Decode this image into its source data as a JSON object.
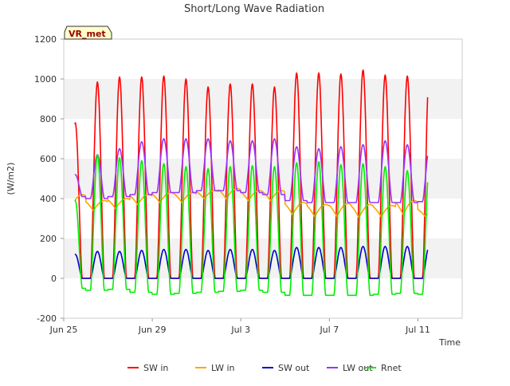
{
  "chart_data": {
    "type": "line",
    "title": "Short/Long Wave Radiation",
    "xlabel": "Time",
    "ylabel": "(W/m2)",
    "station_badge": "VR_met",
    "ylim": [
      -200,
      1200
    ],
    "y_ticks": [
      -200,
      0,
      200,
      400,
      600,
      800,
      1000,
      1200
    ],
    "xlim": [
      "2023-06-25",
      "2023-07-13"
    ],
    "x_ticks": [
      {
        "date": "2023-06-25",
        "label": "Jun 25"
      },
      {
        "date": "2023-06-29",
        "label": "Jun 29"
      },
      {
        "date": "2023-07-03",
        "label": "Jul 3"
      },
      {
        "date": "2023-07-07",
        "label": "Jul 7"
      },
      {
        "date": "2023-07-11",
        "label": "Jul 11"
      }
    ],
    "grid": "horizontal bands",
    "legend_position": "bottom",
    "series": [
      {
        "name": "SW in",
        "color": "#ff0000",
        "description": "daily shortwave incoming peaks",
        "daily_peak": [
          780,
          985,
          1010,
          1010,
          1015,
          1000,
          960,
          975,
          975,
          960,
          1030,
          1030,
          1025,
          1045,
          1020,
          1015,
          1050
        ],
        "night": 0
      },
      {
        "name": "LW in",
        "color": "#ffa500",
        "daily_peak": [
          420,
          390,
          400,
          420,
          430,
          430,
          440,
          450,
          440,
          440,
          380,
          370,
          375,
          370,
          365,
          390,
          350
        ],
        "night": [
          360,
          340,
          350,
          370,
          380,
          380,
          400,
          400,
          390,
          390,
          320,
          310,
          310,
          305,
          310,
          320,
          310
        ]
      },
      {
        "name": "SW out",
        "color": "#0000cc",
        "daily_peak": [
          120,
          135,
          135,
          140,
          145,
          145,
          140,
          145,
          145,
          140,
          155,
          155,
          155,
          160,
          160,
          160,
          165
        ],
        "night": 0
      },
      {
        "name": "LW out",
        "color": "#9933ff",
        "daily_peak": [
          520,
          620,
          650,
          685,
          700,
          700,
          700,
          690,
          690,
          700,
          660,
          650,
          660,
          670,
          690,
          670,
          650
        ],
        "night": [
          410,
          400,
          410,
          420,
          430,
          430,
          440,
          440,
          430,
          420,
          390,
          380,
          380,
          380,
          380,
          380,
          385
        ]
      },
      {
        "name": "Rnet",
        "color": "#00ee00",
        "daily_peak": [
          390,
          620,
          605,
          590,
          575,
          560,
          550,
          560,
          565,
          560,
          580,
          585,
          570,
          575,
          560,
          540,
          570
        ],
        "night": [
          -50,
          -60,
          -55,
          -70,
          -80,
          -75,
          -70,
          -65,
          -60,
          -70,
          -85,
          -85,
          -85,
          -85,
          -80,
          -75,
          -80
        ]
      }
    ]
  }
}
